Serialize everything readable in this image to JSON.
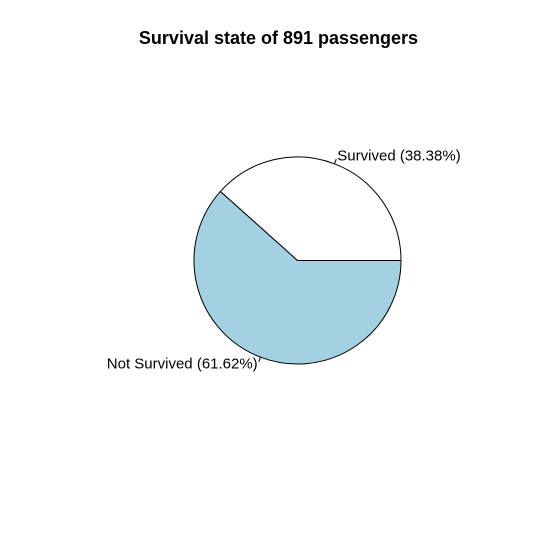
{
  "chart_data": {
    "type": "pie",
    "title": "Survival state of 891 passengers",
    "slices": [
      {
        "label": "Survived (38.38%)",
        "value": 38.38,
        "color": "#ffffff"
      },
      {
        "label": "Not Survived (61.62%)",
        "value": 61.62,
        "color": "#a3d1e2"
      }
    ],
    "start_angle_deg": 0,
    "direction": "counterclockwise",
    "border_color": "#000000"
  }
}
